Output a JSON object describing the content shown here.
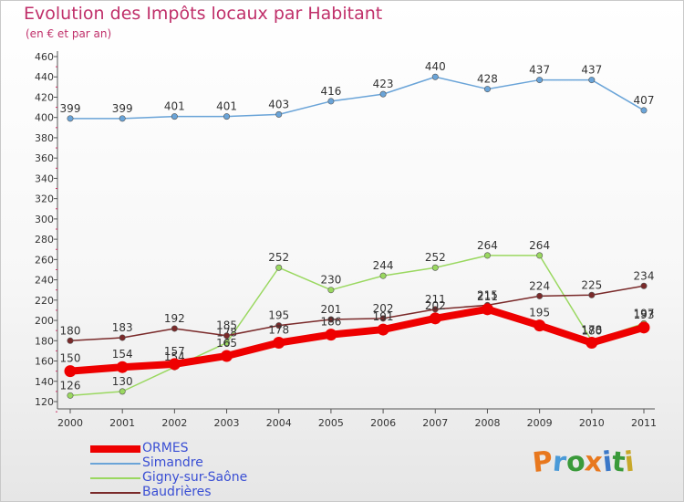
{
  "header": {
    "title": "Evolution des Impôts locaux par Habitant",
    "subtitle": "(en € et par an)"
  },
  "logo": {
    "letters": [
      "P",
      "r",
      "o",
      "x",
      "i",
      "t",
      "i"
    ],
    "colors": [
      "#e8781e",
      "#4a9ad8",
      "#3a9a3a",
      "#e8781e",
      "#3b78c8",
      "#3a9a3a",
      "#c8a82a"
    ]
  },
  "chart_data": {
    "type": "line",
    "categories": [
      "2000",
      "2001",
      "2002",
      "2003",
      "2004",
      "2005",
      "2006",
      "2007",
      "2008",
      "2009",
      "2010",
      "2011"
    ],
    "ylim": [
      120,
      460
    ],
    "y_ticks": [
      120,
      140,
      160,
      180,
      200,
      220,
      240,
      260,
      280,
      300,
      320,
      340,
      360,
      380,
      400,
      420,
      440,
      460
    ],
    "grid": false,
    "legend_position": "bottom-left",
    "series": [
      {
        "name": "Simandre",
        "color": "#6aa4d8",
        "values": [
          399,
          399,
          401,
          401,
          403,
          416,
          423,
          440,
          428,
          437,
          437,
          407
        ]
      },
      {
        "name": "Gigny-sur-Saône",
        "color": "#9ad860",
        "values": [
          126,
          130,
          154,
          178,
          252,
          230,
          244,
          252,
          264,
          264,
          180,
          197
        ]
      },
      {
        "name": "Baudrières",
        "color": "#7a2a2a",
        "values": [
          180,
          183,
          192,
          185,
          195,
          201,
          202,
          211,
          215,
          224,
          225,
          234
        ]
      },
      {
        "name": "ORMES",
        "color": "#ee0000",
        "values": [
          150,
          154,
          157,
          165,
          178,
          186,
          191,
          202,
          211,
          195,
          178,
          193
        ]
      }
    ],
    "legend_order": [
      "ORMES",
      "Simandre",
      "Gigny-sur-Saône",
      "Baudrières"
    ]
  }
}
